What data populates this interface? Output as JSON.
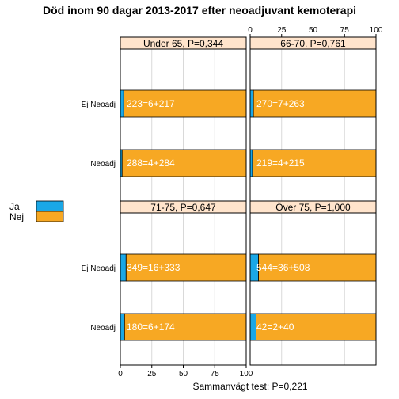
{
  "chart_data": {
    "type": "bar",
    "title": "Död inom 90 dagar 2013-2017 efter neoadjuvant kemoterapi",
    "footer": "Sammanvägt test: P=0,221",
    "x_ticks": [
      "0",
      "25",
      "50",
      "75",
      "100"
    ],
    "xlim": [
      0,
      100
    ],
    "legend": {
      "placement": "left",
      "items": [
        {
          "name": "Ja",
          "color": "#1aa7e6"
        },
        {
          "name": "Nej",
          "color": "#f7a823"
        }
      ]
    },
    "categories": [
      "Ej Neoadj",
      "Neoadj"
    ],
    "panels": [
      {
        "title": "Under 65, P=0,344",
        "bars": [
          {
            "category": "Ej Neoadj",
            "total": 223,
            "ja": 6,
            "nej": 217,
            "label": "223=6+217"
          },
          {
            "category": "Neoadj",
            "total": 288,
            "ja": 4,
            "nej": 284,
            "label": "288=4+284"
          }
        ]
      },
      {
        "title": "66-70, P=0,761",
        "bars": [
          {
            "category": "Ej Neoadj",
            "total": 270,
            "ja": 7,
            "nej": 263,
            "label": "270=7+263"
          },
          {
            "category": "Neoadj",
            "total": 219,
            "ja": 4,
            "nej": 215,
            "label": "219=4+215"
          }
        ]
      },
      {
        "title": "71-75, P=0,647",
        "bars": [
          {
            "category": "Ej Neoadj",
            "total": 349,
            "ja": 16,
            "nej": 333,
            "label": "349=16+333"
          },
          {
            "category": "Neoadj",
            "total": 180,
            "ja": 6,
            "nej": 174,
            "label": "180=6+174"
          }
        ]
      },
      {
        "title": "Över 75, P=1,000",
        "bars": [
          {
            "category": "Ej Neoadj",
            "total": 544,
            "ja": 36,
            "nej": 508,
            "label": "544=36+508"
          },
          {
            "category": "Neoadj",
            "total": 42,
            "ja": 2,
            "nej": 40,
            "label": "42=2+40"
          }
        ]
      }
    ]
  }
}
